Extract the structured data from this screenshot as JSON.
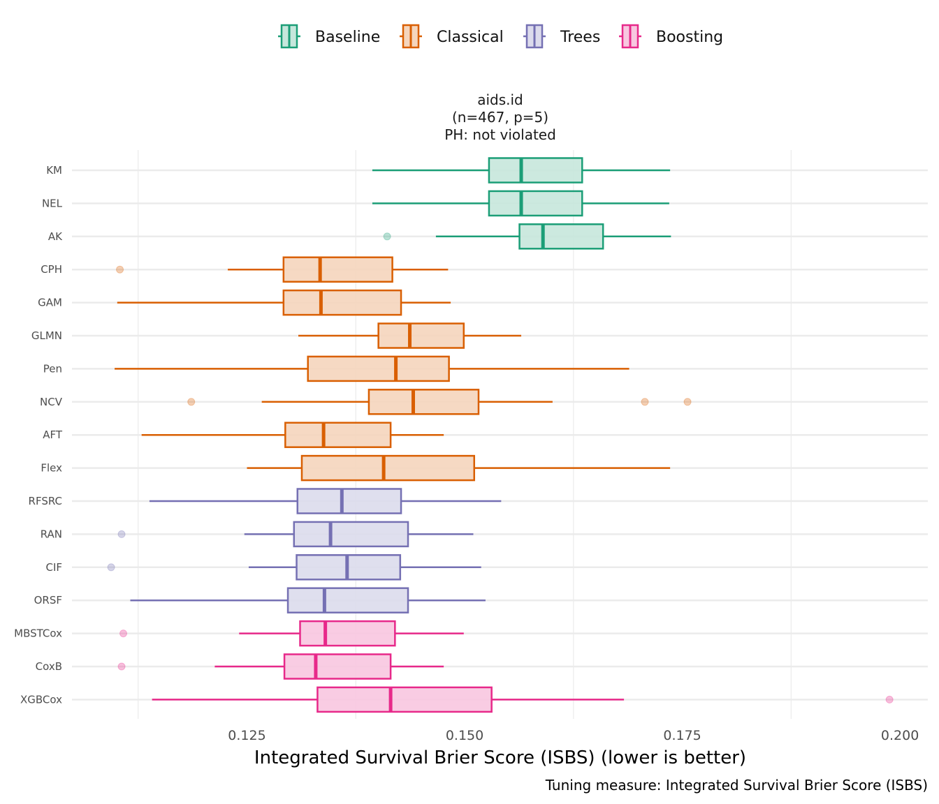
{
  "chart_data": {
    "type": "boxplot",
    "orientation": "horizontal",
    "title": "",
    "facet_strip": [
      "aids.id",
      "(n=467, p=5)",
      "PH: not violated"
    ],
    "xlabel": "Integrated Survival Brier Score (ISBS) (lower is better)",
    "ylabel": "",
    "caption": "Tuning measure: Integrated Survival Brier Score (ISBS)",
    "xlim": [
      0.1049,
      0.2032
    ],
    "x_ticks": [
      0.125,
      0.15,
      0.175,
      0.2
    ],
    "x_tick_labels": [
      "0.125",
      "0.150",
      "0.175",
      "0.200"
    ],
    "x_minor_grid": [
      0.1125,
      0.1375,
      0.1625,
      0.1875
    ],
    "grid": true,
    "legend_position": "top",
    "legend": [
      {
        "name": "Baseline",
        "color": "#1b9e77",
        "fill": "#c6e7dc"
      },
      {
        "name": "Classical",
        "color": "#d95f02",
        "fill": "#f5d5bd"
      },
      {
        "name": "Trees",
        "color": "#7570b3",
        "fill": "#dcdbec"
      },
      {
        "name": "Boosting",
        "color": "#e7298a",
        "fill": "#f8c7e0"
      }
    ],
    "categories": [
      "KM",
      "NEL",
      "AK",
      "CPH",
      "GAM",
      "GLMN",
      "Pen",
      "NCV",
      "AFT",
      "Flex",
      "RFSRC",
      "RAN",
      "CIF",
      "ORSF",
      "MBSTCox",
      "CoxB",
      "XGBCox"
    ],
    "series": [
      {
        "name": "KM",
        "group": "Baseline",
        "whisker_low": 0.1394,
        "q1": 0.1528,
        "median": 0.1565,
        "q3": 0.1635,
        "whisker_high": 0.1736,
        "outliers": []
      },
      {
        "name": "NEL",
        "group": "Baseline",
        "whisker_low": 0.1394,
        "q1": 0.1528,
        "median": 0.1565,
        "q3": 0.1635,
        "whisker_high": 0.1735,
        "outliers": []
      },
      {
        "name": "AK",
        "group": "Baseline",
        "whisker_low": 0.1467,
        "q1": 0.1563,
        "median": 0.159,
        "q3": 0.1659,
        "whisker_high": 0.1737,
        "outliers": [
          0.1411
        ]
      },
      {
        "name": "CPH",
        "group": "Classical",
        "whisker_low": 0.1228,
        "q1": 0.1292,
        "median": 0.1334,
        "q3": 0.1417,
        "whisker_high": 0.1481,
        "outliers": [
          0.1104
        ]
      },
      {
        "name": "GAM",
        "group": "Classical",
        "whisker_low": 0.1101,
        "q1": 0.1292,
        "median": 0.1335,
        "q3": 0.1427,
        "whisker_high": 0.1484,
        "outliers": []
      },
      {
        "name": "GLMN",
        "group": "Classical",
        "whisker_low": 0.1309,
        "q1": 0.1401,
        "median": 0.1437,
        "q3": 0.1499,
        "whisker_high": 0.1565,
        "outliers": []
      },
      {
        "name": "Pen",
        "group": "Classical",
        "whisker_low": 0.1098,
        "q1": 0.132,
        "median": 0.1421,
        "q3": 0.1482,
        "whisker_high": 0.1689,
        "outliers": []
      },
      {
        "name": "NCV",
        "group": "Classical",
        "whisker_low": 0.1267,
        "q1": 0.139,
        "median": 0.1441,
        "q3": 0.1516,
        "whisker_high": 0.1601,
        "outliers": [
          0.1186,
          0.1707,
          0.1756
        ]
      },
      {
        "name": "AFT",
        "group": "Classical",
        "whisker_low": 0.1129,
        "q1": 0.1294,
        "median": 0.1338,
        "q3": 0.1415,
        "whisker_high": 0.1476,
        "outliers": []
      },
      {
        "name": "Flex",
        "group": "Classical",
        "whisker_low": 0.125,
        "q1": 0.1313,
        "median": 0.1407,
        "q3": 0.1511,
        "whisker_high": 0.1736,
        "outliers": []
      },
      {
        "name": "RFSRC",
        "group": "Trees",
        "whisker_low": 0.1138,
        "q1": 0.1308,
        "median": 0.1359,
        "q3": 0.1427,
        "whisker_high": 0.1542,
        "outliers": []
      },
      {
        "name": "RAN",
        "group": "Trees",
        "whisker_low": 0.1247,
        "q1": 0.1304,
        "median": 0.1346,
        "q3": 0.1435,
        "whisker_high": 0.151,
        "outliers": [
          0.1106
        ]
      },
      {
        "name": "CIF",
        "group": "Trees",
        "whisker_low": 0.1252,
        "q1": 0.1307,
        "median": 0.1365,
        "q3": 0.1426,
        "whisker_high": 0.1519,
        "outliers": [
          0.1094
        ]
      },
      {
        "name": "ORSF",
        "group": "Trees",
        "whisker_low": 0.1116,
        "q1": 0.1297,
        "median": 0.1339,
        "q3": 0.1435,
        "whisker_high": 0.1524,
        "outliers": []
      },
      {
        "name": "MBSTCox",
        "group": "Boosting",
        "whisker_low": 0.1241,
        "q1": 0.1311,
        "median": 0.134,
        "q3": 0.142,
        "whisker_high": 0.1499,
        "outliers": [
          0.1108
        ]
      },
      {
        "name": "CoxB",
        "group": "Boosting",
        "whisker_low": 0.1213,
        "q1": 0.1293,
        "median": 0.1329,
        "q3": 0.1415,
        "whisker_high": 0.1476,
        "outliers": [
          0.1106
        ]
      },
      {
        "name": "XGBCox",
        "group": "Boosting",
        "whisker_low": 0.1141,
        "q1": 0.1331,
        "median": 0.1415,
        "q3": 0.1531,
        "whisker_high": 0.1683,
        "outliers": [
          0.1988
        ]
      }
    ]
  }
}
